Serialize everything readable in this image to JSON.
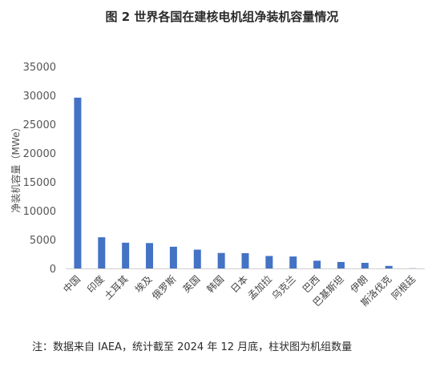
{
  "title": "图 2 世界各国在建核电机组净装机容量情况",
  "note": "注：数据来自 IAEA，统计截至 2024 年 12 月底，柱状图为机组数量",
  "colors": {
    "bar": "#4472C4",
    "axis": "#d0d0d0"
  },
  "chart_data": {
    "type": "bar",
    "title": "图 2 世界各国在建核电机组净装机容量情况",
    "xlabel": "",
    "ylabel": "净装机容量（MWe）",
    "ylim": [
      0,
      35000
    ],
    "yticks": [
      0,
      5000,
      10000,
      15000,
      20000,
      25000,
      30000,
      35000
    ],
    "grid": false,
    "categories": [
      "中国",
      "印度",
      "土耳其",
      "埃及",
      "俄罗斯",
      "英国",
      "韩国",
      "日本",
      "孟加拉",
      "乌克兰",
      "巴西",
      "巴基斯坦",
      "伊朗",
      "斯洛伐克",
      "阿根廷"
    ],
    "values": [
      29600,
      5400,
      4460,
      4400,
      3760,
      3260,
      2680,
      2650,
      2160,
      2070,
      1340,
      1120,
      970,
      440,
      30
    ]
  }
}
